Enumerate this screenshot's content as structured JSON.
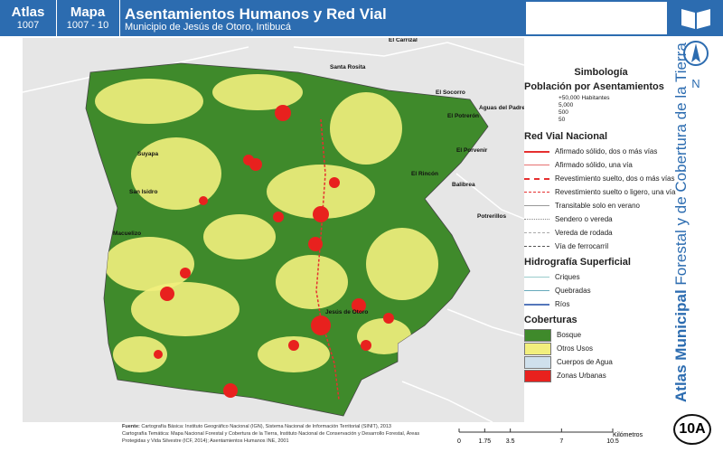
{
  "header": {
    "atlas_label": "Atlas",
    "atlas_number": "1007",
    "map_label": "Mapa",
    "map_number": "1007 - 10",
    "title": "Asentamientos Humanos y Red Vial",
    "subtitle": "Municipio de Jesús de Otoro, Intibucá"
  },
  "side": {
    "vertical_title_bold": "Atlas Municipal",
    "vertical_title": "Forestal y de Cobertura de la Tierra",
    "north": "N",
    "code": "10A"
  },
  "places": [
    "El Carrizal",
    "Santa Rosita",
    "El Socorro",
    "Aguas del Padre",
    "El Potrerón",
    "Suyapa",
    "El Porvenir",
    "El Rincón",
    "Balibrea",
    "San Isidro",
    "Potrerillos",
    "Macuelizo",
    "Jesús de Otoro"
  ],
  "legend": {
    "title": "Simbología",
    "population": {
      "title": "Población por Asentamientos",
      "items": [
        "+50,000 Habitantes",
        "5,000",
        "500",
        "50"
      ]
    },
    "roads": {
      "title": "Red Vial Nacional",
      "items": [
        "Afirmado sólido, dos o más vías",
        "Afirmado sólido, una vía",
        "Revestimiento suelto, dos o más vías",
        "Revestimiento suelto o ligero, una vía",
        "Transitable solo en verano",
        "Sendero o vereda",
        "Vereda de rodada",
        "Vía de ferrocarril"
      ]
    },
    "hydro": {
      "title": "Hidrografía Superficial",
      "items": [
        "Criques",
        "Quebradas",
        "Ríos"
      ]
    },
    "cover": {
      "title": "Coberturas",
      "items": [
        "Bosque",
        "Otros Usos",
        "Cuerpos de Agua",
        "Zonas Urbanas"
      ]
    }
  },
  "scale": {
    "ticks": [
      0,
      1.75,
      3.5,
      7,
      10.5
    ],
    "unit": "Kilómetros"
  },
  "source": {
    "label": "Fuente:",
    "lines": [
      "Cartografía Básica: Instituto Geográfico Nacional (IGN), Sistema Nacional de Información Territorial (SINIT), 2013",
      "Cartografía Temática: Mapa Nacional Forestal y Cobertura de la Tierra, Instituto Nacional de Conservación y Desarrollo Forestal, Áreas Protegidas y Vida Silvestre (ICF, 2014); Asentamientos Humanos INE, 2001"
    ]
  }
}
